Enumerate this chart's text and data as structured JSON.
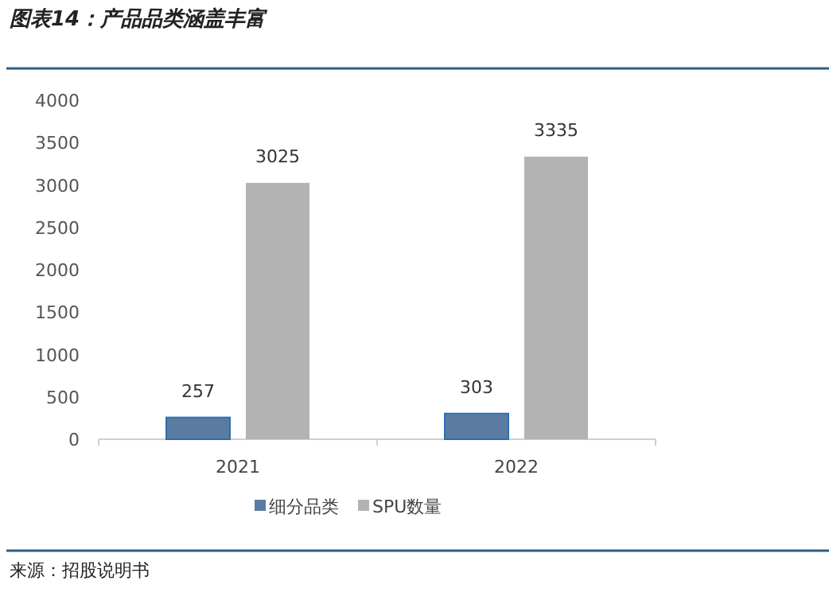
{
  "chart_data": {
    "type": "bar",
    "title": "图表14：产品品类涵盖丰富",
    "categories": [
      "2021",
      "2022"
    ],
    "series": [
      {
        "name": "细分品类",
        "color": "#5b7ba3",
        "values": [
          257,
          303
        ]
      },
      {
        "name": "SPU数量",
        "color": "#b3b3b3",
        "values": [
          3025,
          3335
        ]
      }
    ],
    "ylim": [
      0,
      4000
    ],
    "yticks": [
      0,
      500,
      1000,
      1500,
      2000,
      2500,
      3000,
      3500,
      4000
    ],
    "data_labels": true,
    "legend": "bottom",
    "grid": false,
    "annotations": [
      "来源：招股说明书"
    ]
  }
}
